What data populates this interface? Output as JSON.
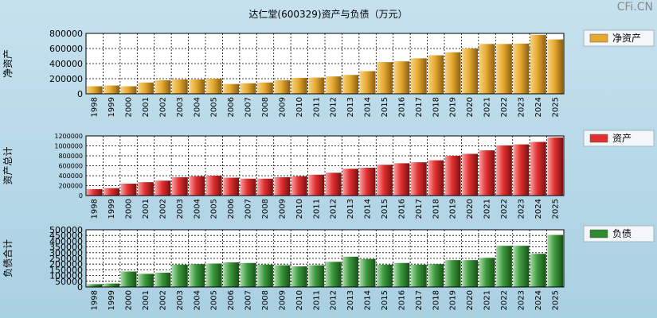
{
  "title": "达仁堂(600329)资产与负债（万元）",
  "watermark": "CFi.CN",
  "colors": {
    "plot_bg": "#ffffff",
    "grid": "#000000",
    "net_assets": "#e6a930",
    "total_assets": "#e23030",
    "liabilities": "#2f8a2f"
  },
  "chart_data": [
    {
      "type": "bar",
      "id": "net_assets",
      "title": "达仁堂(600329)资产与负债（万元）",
      "ylabel": "净资产",
      "legend": "净资产",
      "ylim": [
        0,
        800000
      ],
      "yticks": [
        0,
        200000,
        400000,
        600000,
        800000
      ],
      "ytick_labels": [
        "0",
        "200000",
        "400000",
        "600000",
        "800000"
      ],
      "categories": [
        "1998",
        "1999",
        "2000",
        "2001",
        "2002",
        "2003",
        "2004",
        "2005",
        "2006",
        "2007",
        "2008",
        "2009",
        "2010",
        "2011",
        "2012",
        "2013",
        "2014",
        "2015",
        "2016",
        "2017",
        "2018",
        "2019",
        "2020",
        "2021",
        "2022",
        "2023",
        "2024",
        "2025"
      ],
      "values": [
        100000,
        110000,
        100000,
        150000,
        180000,
        190000,
        190000,
        200000,
        130000,
        140000,
        150000,
        180000,
        210000,
        215000,
        230000,
        250000,
        300000,
        420000,
        430000,
        470000,
        510000,
        550000,
        600000,
        660000,
        660000,
        665000,
        780000,
        720000
      ]
    },
    {
      "type": "bar",
      "id": "total_assets",
      "ylabel": "资产总计",
      "legend": "资产",
      "ylim": [
        0,
        1200000
      ],
      "yticks": [
        0,
        200000,
        400000,
        600000,
        800000,
        1000000,
        1200000
      ],
      "ytick_labels": [
        "0",
        "200000",
        "400000",
        "600000",
        "800000",
        "1000000",
        "1200000"
      ],
      "categories": [
        "1998",
        "1999",
        "2000",
        "2001",
        "2002",
        "2003",
        "2004",
        "2005",
        "2006",
        "2007",
        "2008",
        "2009",
        "2010",
        "2011",
        "2012",
        "2013",
        "2014",
        "2015",
        "2016",
        "2017",
        "2018",
        "2019",
        "2020",
        "2021",
        "2022",
        "2023",
        "2024",
        "2025"
      ],
      "values": [
        130000,
        150000,
        240000,
        270000,
        300000,
        370000,
        390000,
        400000,
        360000,
        340000,
        340000,
        370000,
        390000,
        420000,
        460000,
        540000,
        560000,
        620000,
        650000,
        670000,
        710000,
        800000,
        840000,
        910000,
        1010000,
        1030000,
        1080000,
        1170000
      ]
    },
    {
      "type": "bar",
      "id": "liabilities",
      "ylabel": "负债合计",
      "legend": "负债",
      "ylim": [
        0,
        500000
      ],
      "yticks": [
        0,
        50000,
        100000,
        150000,
        200000,
        250000,
        300000,
        350000,
        400000,
        450000,
        500000
      ],
      "ytick_labels": [
        "0",
        "50000",
        "100000",
        "150000",
        "200000",
        "250000",
        "300000",
        "350000",
        "400000",
        "450000",
        "500000"
      ],
      "categories": [
        "1998",
        "1999",
        "2000",
        "2001",
        "2002",
        "2003",
        "2004",
        "2005",
        "2006",
        "2007",
        "2008",
        "2009",
        "2010",
        "2011",
        "2012",
        "2013",
        "2014",
        "2015",
        "2016",
        "2017",
        "2018",
        "2019",
        "2020",
        "2021",
        "2022",
        "2023",
        "2024",
        "2025"
      ],
      "values": [
        25000,
        30000,
        135000,
        115000,
        125000,
        195000,
        200000,
        205000,
        215000,
        210000,
        195000,
        190000,
        180000,
        190000,
        220000,
        265000,
        245000,
        195000,
        210000,
        195000,
        200000,
        235000,
        235000,
        255000,
        360000,
        360000,
        290000,
        455000
      ]
    }
  ]
}
